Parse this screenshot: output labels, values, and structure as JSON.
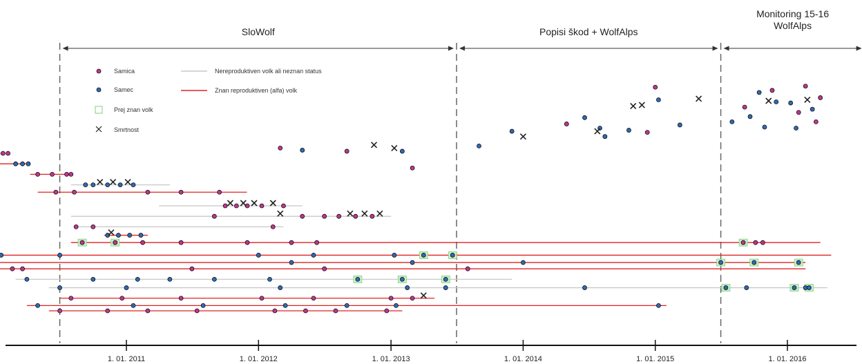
{
  "chart_data": {
    "type": "scatter",
    "title": "",
    "xlabel": "",
    "ylabel": "",
    "x_axis": {
      "type": "date",
      "range": [
        "2010-01-01",
        "2016-08-01"
      ],
      "ticks": [
        {
          "date": "2011-01-01",
          "label": "1. 01. 2011"
        },
        {
          "date": "2012-01-01",
          "label": "1. 01. 2012"
        },
        {
          "date": "2013-01-01",
          "label": "1. 01. 2013"
        },
        {
          "date": "2014-01-01",
          "label": "1. 01. 2014"
        },
        {
          "date": "2015-01-01",
          "label": "1. 01. 2015"
        },
        {
          "date": "2016-01-01",
          "label": "1. 01. 2016"
        }
      ]
    },
    "grid": false,
    "legend_position": "top-left",
    "periods": [
      {
        "label": "SloWolf",
        "start": "2010-07-01",
        "end": "2013-07-01"
      },
      {
        "label": "Popisi škod + WolfAlps",
        "start": "2013-07-01",
        "end": "2015-07-01"
      },
      {
        "label": "Monitoring 15-16 WolfAlps",
        "start": "2015-07-01",
        "end": "2016-08-01"
      }
    ],
    "legend": {
      "female": "Samica",
      "male": "Samec",
      "known": "Prej znan volk",
      "death": "Smrtnost",
      "nonrepro": "Nereproduktiven volk ali neznan status",
      "repro": "Znan reproduktiven (alfa) volk"
    },
    "colors": {
      "female": "#c2358f",
      "male": "#2d6bb7",
      "nonrepro_line": "#c8c8c8",
      "repro_line": "#e02020",
      "known_box": "#7fd07f",
      "death": "#222222"
    },
    "tracks": [
      {
        "y": 33,
        "start": "2010-01-01",
        "end": "2010-02-10",
        "repro": false,
        "sex": "female",
        "pts": [
          "2010-01-25",
          "2010-02-08"
        ]
      },
      {
        "y": 32,
        "start": "2010-01-01",
        "end": "2010-04-10",
        "repro": true,
        "sex": "male",
        "pts": [
          "2010-03-01",
          "2010-03-20",
          "2010-04-05"
        ]
      },
      {
        "y": 31,
        "start": "2010-04-10",
        "end": "2010-08-05",
        "repro": true,
        "sex": "female",
        "pts": [
          "2010-05-01",
          "2010-06-10",
          "2010-07-20",
          "2010-08-01"
        ]
      },
      {
        "y": 30,
        "start": "2010-08-01",
        "end": "2011-05-01",
        "repro": false,
        "sex": "male",
        "deaths": [
          "2010-10-20",
          "2010-11-25",
          "2011-01-05"
        ],
        "pts": [
          "2010-09-10",
          "2010-10-01",
          "2010-11-10",
          "2010-12-15",
          "2011-01-20"
        ]
      },
      {
        "y": 29.3,
        "start": "2010-05-01",
        "end": "2011-11-30",
        "repro": true,
        "sex": "female",
        "pts": [
          "2010-06-20",
          "2010-08-10",
          "2011-03-01",
          "2011-06-01",
          "2011-09-15"
        ]
      },
      {
        "y": 28,
        "start": "2011-04-01",
        "end": "2012-05-01",
        "repro": false,
        "sex": "female",
        "deaths": [
          "2011-10-15",
          "2011-11-20",
          "2011-12-20",
          "2012-02-10"
        ],
        "pts": [
          "2011-10-01",
          "2011-11-01",
          "2011-12-01",
          "2012-01-10",
          "2012-03-10"
        ]
      },
      {
        "y": 27,
        "start": "2010-08-01",
        "end": "2013-01-01",
        "repro": false,
        "sex": "female",
        "deaths": [
          "2012-03-01",
          "2012-09-10",
          "2012-10-20",
          "2012-12-01"
        ],
        "pts": [
          "2011-09-01",
          "2012-05-01",
          "2012-07-01",
          "2012-08-10",
          "2012-09-25",
          "2012-11-10"
        ]
      },
      {
        "y": 26,
        "start": "2010-08-10",
        "end": "2012-03-10",
        "repro": false,
        "sex": "female",
        "pts": [
          "2010-08-15",
          "2010-10-01",
          "2012-02-10"
        ]
      },
      {
        "y": 25.2,
        "start": "2010-11-01",
        "end": "2011-03-01",
        "repro": true,
        "sex": "male",
        "deaths": [
          "2010-11-20"
        ],
        "pts": [
          "2010-11-10",
          "2010-12-10",
          "2011-01-10",
          "2011-02-10"
        ]
      },
      {
        "y": 24.5,
        "start": "2010-08-01",
        "end": "2016-04-01",
        "repro": true,
        "sex": "female",
        "known": [
          "2010-09-01",
          "2010-12-01",
          "2015-09-01"
        ],
        "pts": [
          "2010-09-01",
          "2010-12-01",
          "2011-02-15",
          "2011-06-01",
          "2011-12-01",
          "2012-04-01",
          "2012-06-10",
          "2015-09-01",
          "2015-10-05",
          "2015-10-25"
        ]
      },
      {
        "y": 23.3,
        "start": "2010-01-01",
        "end": "2016-05-01",
        "repro": true,
        "sex": "male",
        "known": [
          "2013-04-01",
          "2013-06-20"
        ],
        "pts": [
          "2010-01-20",
          "2010-07-01",
          "2012-01-01",
          "2012-06-01",
          "2013-01-10",
          "2013-04-01",
          "2013-06-20"
        ]
      },
      {
        "y": 22.6,
        "start": "2010-01-01",
        "end": "2016-02-20",
        "repro": true,
        "sex": "male",
        "known": [
          "2015-07-01",
          "2015-10-01",
          "2016-02-01"
        ],
        "pts": [
          "2010-01-10",
          "2012-04-01",
          "2013-03-01",
          "2014-01-01",
          "2015-07-01",
          "2015-10-01",
          "2016-02-01"
        ]
      },
      {
        "y": 22,
        "start": "2010-01-01",
        "end": "2016-02-20",
        "repro": true,
        "sex": "female",
        "pts": [
          "2010-02-20",
          "2010-03-20",
          "2011-07-01",
          "2012-07-01",
          "2013-08-01"
        ]
      },
      {
        "y": 21,
        "start": "2010-03-01",
        "end": "2013-12-01",
        "repro": false,
        "sex": "male",
        "known": [
          "2012-10-01",
          "2013-02-01",
          "2013-06-01"
        ],
        "pts": [
          "2010-04-01",
          "2010-10-01",
          "2011-02-01",
          "2011-05-01",
          "2011-09-01",
          "2012-02-01",
          "2012-10-01",
          "2013-02-01",
          "2013-06-01"
        ]
      },
      {
        "y": 20.2,
        "start": "2010-06-01",
        "end": "2016-04-20",
        "repro": false,
        "sex": "male",
        "known": [
          "2015-07-15",
          "2016-01-20",
          "2016-03-01"
        ],
        "pts": [
          "2010-07-01",
          "2011-01-01",
          "2012-03-01",
          "2013-02-15",
          "2013-06-01",
          "2014-06-20",
          "2015-07-15",
          "2015-09-10",
          "2016-01-20",
          "2016-02-20",
          "2016-03-01"
        ]
      },
      {
        "y": 19.2,
        "start": "2010-07-01",
        "end": "2013-05-01",
        "repro": true,
        "sex": "female",
        "deaths": [
          "2013-04-01"
        ],
        "pts": [
          "2010-08-01",
          "2010-12-20",
          "2011-06-01",
          "2012-01-10",
          "2012-06-01",
          "2013-01-01",
          "2013-03-01"
        ]
      },
      {
        "y": 18.5,
        "start": "2010-04-01",
        "end": "2015-02-01",
        "repro": true,
        "sex": "male",
        "pts": [
          "2010-05-01",
          "2011-01-20",
          "2011-08-01",
          "2012-03-15",
          "2012-09-01",
          "2013-01-15",
          "2015-01-10"
        ]
      },
      {
        "y": 18,
        "start": "2010-06-01",
        "end": "2013-02-01",
        "repro": true,
        "sex": "female",
        "pts": [
          "2010-07-01",
          "2010-11-10",
          "2011-03-01",
          "2011-07-15",
          "2012-02-15",
          "2012-05-10",
          "2012-08-01",
          "2012-12-20"
        ]
      }
    ],
    "scatter": [
      {
        "x": "2012-03-01",
        "y": 33.5,
        "sex": "female"
      },
      {
        "x": "2012-05-01",
        "y": 33.3,
        "sex": "male"
      },
      {
        "x": "2012-09-01",
        "y": 33.2,
        "sex": "female"
      },
      {
        "x": "2013-02-01",
        "y": 33.2,
        "sex": "male"
      },
      {
        "x": "2013-03-01",
        "y": 31.6,
        "sex": "female"
      },
      {
        "x": "2013-09-01",
        "y": 33.7,
        "sex": "male"
      },
      {
        "x": "2013-12-01",
        "y": 35.1,
        "sex": "male"
      },
      {
        "x": "2014-05-01",
        "y": 35.8,
        "sex": "female"
      },
      {
        "x": "2014-08-01",
        "y": 35.4,
        "sex": "male"
      },
      {
        "x": "2014-10-20",
        "y": 35.2,
        "sex": "male"
      },
      {
        "x": "2015-01-01",
        "y": 39.3,
        "sex": "female"
      },
      {
        "x": "2015-01-10",
        "y": 38.1,
        "sex": "male"
      },
      {
        "x": "2014-06-20",
        "y": 36.4,
        "sex": "male"
      },
      {
        "x": "2014-08-15",
        "y": 34.6,
        "sex": "male"
      },
      {
        "x": "2014-12-10",
        "y": 35.0,
        "sex": "female"
      },
      {
        "x": "2015-03-10",
        "y": 35.7,
        "sex": "male"
      },
      {
        "x": "2015-09-05",
        "y": 37.4,
        "sex": "female"
      },
      {
        "x": "2015-09-20",
        "y": 36.5,
        "sex": "male"
      },
      {
        "x": "2015-10-15",
        "y": 38.8,
        "sex": "male"
      },
      {
        "x": "2015-11-20",
        "y": 39.0,
        "sex": "female"
      },
      {
        "x": "2016-01-10",
        "y": 37.8,
        "sex": "male"
      },
      {
        "x": "2016-02-01",
        "y": 36.9,
        "sex": "female"
      },
      {
        "x": "2016-03-10",
        "y": 37.2,
        "sex": "male"
      },
      {
        "x": "2016-04-01",
        "y": 38.3,
        "sex": "female"
      },
      {
        "x": "2015-08-01",
        "y": 36.0,
        "sex": "male"
      },
      {
        "x": "2015-10-30",
        "y": 35.5,
        "sex": "male"
      },
      {
        "x": "2016-01-25",
        "y": 35.4,
        "sex": "male"
      },
      {
        "x": "2016-03-20",
        "y": 36.0,
        "sex": "female"
      },
      {
        "x": "2016-02-20",
        "y": 39.4,
        "sex": "female"
      },
      {
        "x": "2015-12-01",
        "y": 37.9,
        "sex": "male"
      }
    ],
    "scatter_deaths": [
      {
        "x": "2012-11-15",
        "y": 33.8
      },
      {
        "x": "2013-01-10",
        "y": 33.5
      },
      {
        "x": "2014-01-01",
        "y": 34.6
      },
      {
        "x": "2014-07-25",
        "y": 35.1
      },
      {
        "x": "2014-11-01",
        "y": 37.5
      },
      {
        "x": "2014-11-25",
        "y": 37.6
      },
      {
        "x": "2015-05-01",
        "y": 38.2
      },
      {
        "x": "2015-11-10",
        "y": 38.0
      },
      {
        "x": "2016-02-25",
        "y": 38.1
      }
    ]
  }
}
